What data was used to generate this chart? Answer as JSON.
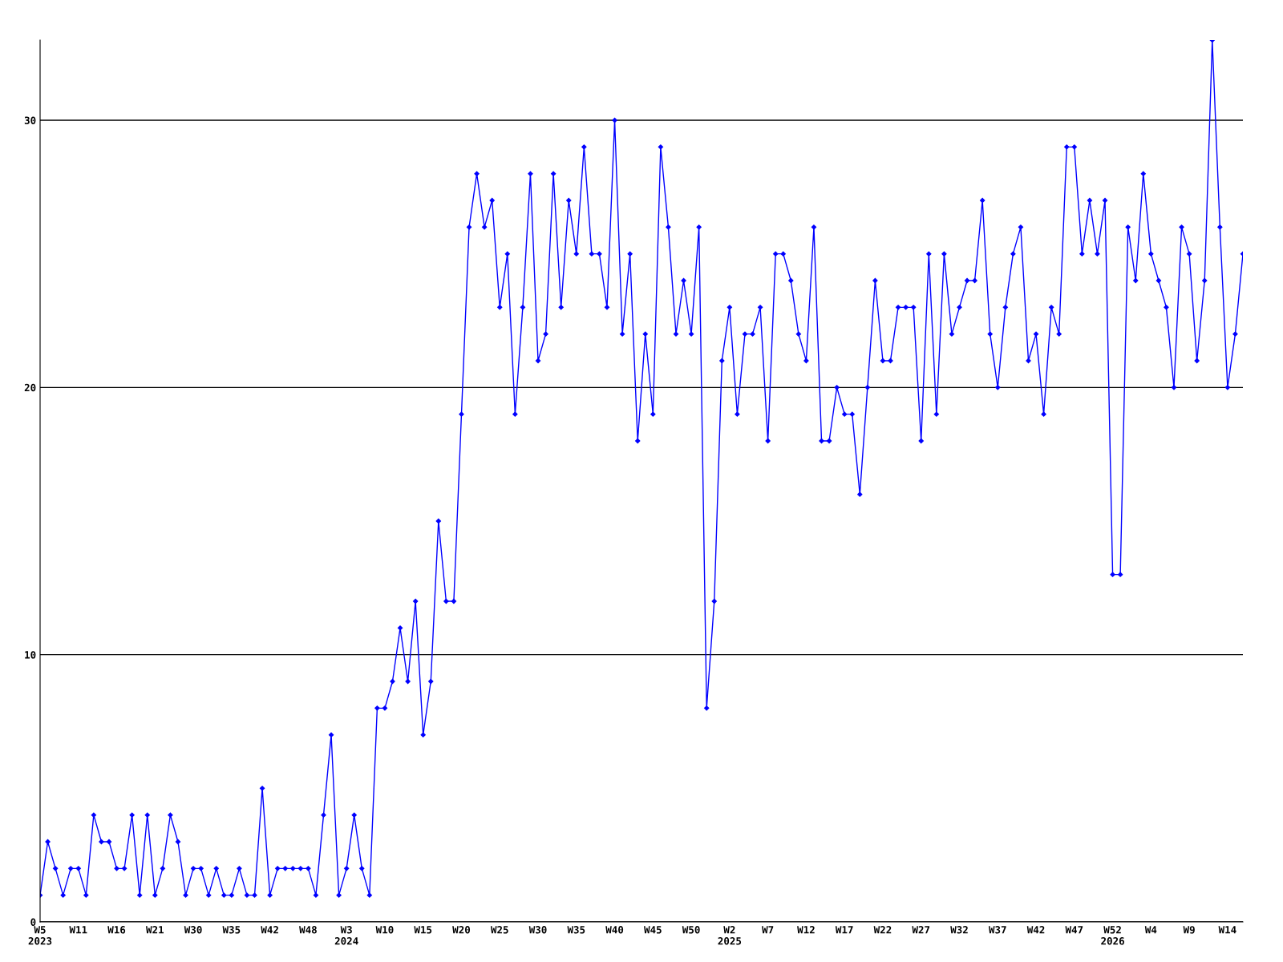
{
  "chart_data": {
    "type": "line",
    "categories": [
      "W5\n2023",
      null,
      null,
      null,
      null,
      "W11",
      null,
      null,
      null,
      null,
      "W16",
      null,
      null,
      null,
      null,
      "W21",
      null,
      null,
      null,
      null,
      "W30",
      null,
      null,
      null,
      null,
      "W35",
      null,
      null,
      null,
      null,
      "W42",
      null,
      null,
      null,
      null,
      "W48",
      null,
      null,
      null,
      null,
      "W3\n2024",
      null,
      null,
      null,
      null,
      "W10",
      null,
      null,
      null,
      null,
      "W15",
      null,
      null,
      null,
      null,
      "W20",
      null,
      null,
      null,
      null,
      "W25",
      null,
      null,
      null,
      null,
      "W30",
      null,
      null,
      null,
      null,
      "W35",
      null,
      null,
      null,
      null,
      "W40",
      null,
      null,
      null,
      null,
      "W45",
      null,
      null,
      null,
      null,
      "W50",
      null,
      null,
      null,
      null,
      "W2\n2025",
      null,
      null,
      null,
      null,
      "W7",
      null,
      null,
      null,
      null,
      "W12",
      null,
      null,
      null,
      null,
      "W17",
      null,
      null,
      null,
      null,
      "W22",
      null,
      null,
      null,
      null,
      "W27",
      null,
      null,
      null,
      null,
      "W32",
      null,
      null,
      null,
      null,
      "W37",
      null,
      null,
      null,
      null,
      "W42",
      null,
      null,
      null,
      null,
      "W47",
      null,
      null,
      null,
      null,
      "W52\n2026",
      null,
      null,
      null,
      null,
      "W4",
      null,
      null,
      null,
      null,
      "W9",
      null,
      null,
      null,
      null,
      "W14",
      null,
      null
    ],
    "series": [
      {
        "color": "#0000ff",
        "values": [
          1,
          3,
          2,
          1,
          2,
          2,
          1,
          4,
          3,
          3,
          2,
          2,
          4,
          1,
          4,
          1,
          2,
          4,
          3,
          1,
          2,
          2,
          1,
          2,
          1,
          1,
          2,
          1,
          1,
          5,
          1,
          2,
          2,
          2,
          2,
          2,
          1,
          4,
          7,
          1,
          2,
          4,
          2,
          1,
          8,
          8,
          9,
          11,
          9,
          12,
          7,
          9,
          15,
          12,
          12,
          19,
          26,
          28,
          26,
          27,
          23,
          25,
          19,
          23,
          28,
          21,
          22,
          28,
          23,
          27,
          25,
          29,
          25,
          25,
          23,
          30,
          22,
          25,
          18,
          22,
          19,
          29,
          26,
          22,
          24,
          22,
          26,
          8,
          12,
          21,
          23,
          19,
          22,
          22,
          23,
          18,
          25,
          25,
          24,
          22,
          21,
          26,
          18,
          18,
          20,
          19,
          19,
          16,
          20,
          24,
          21,
          21,
          23,
          23,
          23,
          18,
          25,
          19,
          25,
          22,
          23,
          24,
          24,
          27,
          22,
          20,
          23,
          25,
          26,
          21,
          22,
          19,
          23,
          22,
          29,
          29,
          25,
          27,
          25,
          27,
          13,
          13,
          26,
          24,
          28,
          25,
          24,
          23,
          20,
          26,
          25,
          21,
          24,
          33,
          26,
          20,
          22,
          25
        ]
      }
    ],
    "ylim": [
      0,
      33
    ],
    "yticks": [
      0,
      10,
      20,
      30
    ],
    "grid": "y",
    "marker": "diamond",
    "line_style": "solid",
    "legend": false
  }
}
